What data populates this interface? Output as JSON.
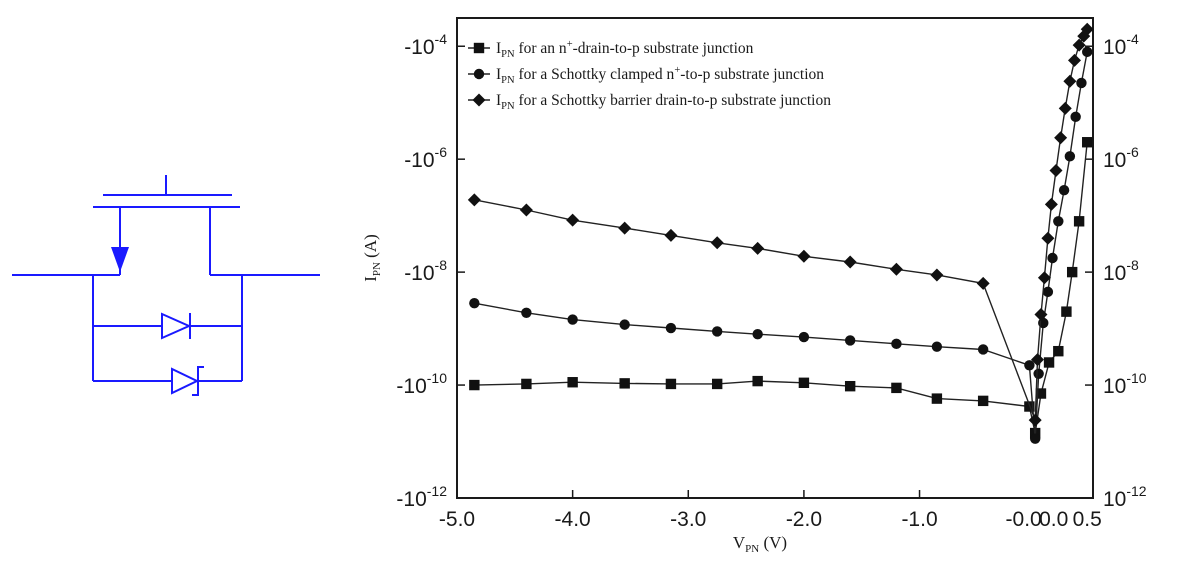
{
  "schematic": {
    "color": "#1a1aff"
  },
  "chart_data": {
    "type": "scatter",
    "xlabel": {
      "main": "V",
      "sub": "PN",
      "unit": " (V)"
    },
    "ylabel": {
      "main": "I",
      "sub": "PN",
      "unit": " (A)"
    },
    "xlim": [
      -5.0,
      0.5
    ],
    "ylim_log10": [
      -12,
      -3.5
    ],
    "x_ticks": [
      "-5.0",
      "-4.0",
      "-3.0",
      "-2.0",
      "-1.0",
      "-0.0",
      "0.0",
      "0.5"
    ],
    "y_ticks_left": [
      {
        "base": "-10",
        "exp": "-4"
      },
      {
        "base": "-10",
        "exp": "-6"
      },
      {
        "base": "-10",
        "exp": "-8"
      },
      {
        "base": "-10",
        "exp": "-10"
      },
      {
        "base": "-10",
        "exp": "-12"
      }
    ],
    "y_ticks_right": [
      {
        "base": "10",
        "exp": "-4"
      },
      {
        "base": "10",
        "exp": "-6"
      },
      {
        "base": "10",
        "exp": "-8"
      },
      {
        "base": "10",
        "exp": "-10"
      },
      {
        "base": "10",
        "exp": "-12"
      }
    ],
    "legend": [
      {
        "marker": "square",
        "label": {
          "pre": "I",
          "sub": "PN",
          "a": " for an n",
          "sup": "+",
          "b": "-drain-to-p substrate junction"
        }
      },
      {
        "marker": "circle",
        "label": {
          "pre": "I",
          "sub": "PN",
          "a": " for a Schottky clamped n",
          "sup": "+",
          "b": "-to-p substrate junction"
        }
      },
      {
        "marker": "diamond",
        "label": {
          "pre": "I",
          "sub": "PN",
          "a": " for a Schottky barrier drain-to-p substrate junction",
          "sup": "",
          "b": ""
        }
      }
    ],
    "legend_position": "top-left",
    "series": [
      {
        "marker": "square",
        "x": [
          -4.85,
          -4.4,
          -4.0,
          -3.55,
          -3.15,
          -2.75,
          -2.4,
          -2.0,
          -1.6,
          -1.2,
          -0.85,
          -0.45,
          -0.05,
          0.0,
          0.05,
          0.12,
          0.2,
          0.27,
          0.32,
          0.38,
          0.45
        ],
        "y": [
          -10.0,
          -9.98,
          -9.95,
          -9.97,
          -9.98,
          -9.98,
          -9.93,
          -9.96,
          -10.02,
          -10.05,
          -10.24,
          -10.28,
          -10.38,
          -10.85,
          -10.15,
          -9.6,
          -9.4,
          -8.7,
          -8.0,
          -7.1,
          -5.7
        ]
      },
      {
        "marker": "circle",
        "x": [
          -4.85,
          -4.4,
          -4.0,
          -3.55,
          -3.15,
          -2.75,
          -2.4,
          -2.0,
          -1.6,
          -1.2,
          -0.85,
          -0.45,
          -0.05,
          0.0,
          0.03,
          0.07,
          0.11,
          0.15,
          0.2,
          0.25,
          0.3,
          0.35,
          0.4,
          0.45
        ],
        "y": [
          -8.55,
          -8.72,
          -8.84,
          -8.93,
          -8.99,
          -9.05,
          -9.1,
          -9.15,
          -9.21,
          -9.27,
          -9.32,
          -9.37,
          -9.65,
          -10.95,
          -9.8,
          -8.9,
          -8.35,
          -7.75,
          -7.1,
          -6.55,
          -5.95,
          -5.25,
          -4.65,
          -4.1
        ]
      },
      {
        "marker": "diamond",
        "x": [
          -4.85,
          -4.4,
          -4.0,
          -3.55,
          -3.15,
          -2.75,
          -2.4,
          -2.0,
          -1.6,
          -1.2,
          -0.85,
          -0.45,
          0.0,
          0.02,
          0.05,
          0.08,
          0.11,
          0.14,
          0.18,
          0.22,
          0.26,
          0.3,
          0.34,
          0.38,
          0.42,
          0.45
        ],
        "y": [
          -6.72,
          -6.9,
          -7.08,
          -7.22,
          -7.35,
          -7.48,
          -7.58,
          -7.72,
          -7.82,
          -7.95,
          -8.05,
          -8.2,
          -10.62,
          -9.55,
          -8.75,
          -8.1,
          -7.4,
          -6.8,
          -6.2,
          -5.62,
          -5.1,
          -4.62,
          -4.25,
          -3.98,
          -3.82,
          -3.7
        ]
      }
    ]
  }
}
